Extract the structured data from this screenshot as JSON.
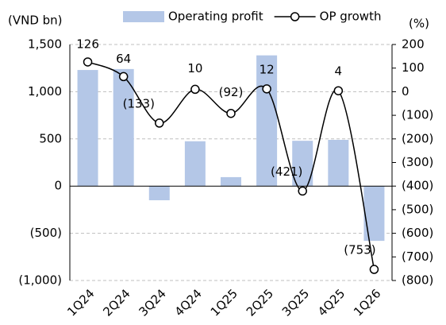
{
  "chart_data": {
    "type": "bar_line",
    "categories": [
      "1Q24",
      "2Q24",
      "3Q24",
      "4Q24",
      "1Q25",
      "2Q25",
      "3Q25",
      "4Q25",
      "1Q26"
    ],
    "series": [
      {
        "name": "Operating profit",
        "type": "bar",
        "color": "#b4c7e7",
        "values": [
          1230,
          1240,
          -150,
          475,
          95,
          1385,
          480,
          490,
          -580
        ]
      },
      {
        "name": "OP growth",
        "type": "line",
        "axis": "y2",
        "color": "#000000",
        "values": [
          126,
          64,
          -133,
          10,
          -92,
          12,
          -421,
          4,
          -753
        ],
        "value_labels": [
          "126",
          "64",
          "(133)",
          "10",
          "(92)",
          "12",
          "(421)",
          "4",
          "(753)"
        ]
      }
    ],
    "y_label": "(VND bn)",
    "y2_label": "(%)",
    "ylim": [
      -1000,
      1500
    ],
    "yticks": [
      {
        "value": -1000,
        "label": "(1,000)"
      },
      {
        "value": -500,
        "label": "(500)"
      },
      0,
      500,
      {
        "value": 1000,
        "label": "1,000"
      },
      {
        "value": 1500,
        "label": "1,500"
      }
    ],
    "y2lim": [
      -800,
      200
    ],
    "y2ticks": [
      {
        "value": -800,
        "label": "(800)"
      },
      {
        "value": -700,
        "label": "(700)"
      },
      {
        "value": -600,
        "label": "(600)"
      },
      {
        "value": -500,
        "label": "(500)"
      },
      {
        "value": -400,
        "label": "(400)"
      },
      {
        "value": -300,
        "label": "(300)"
      },
      {
        "value": -200,
        "label": "(200)"
      },
      {
        "value": -100,
        "label": "(100)"
      },
      0,
      100,
      200
    ],
    "grid": true,
    "negative_label_color": "#ff0000",
    "legend": "top"
  }
}
